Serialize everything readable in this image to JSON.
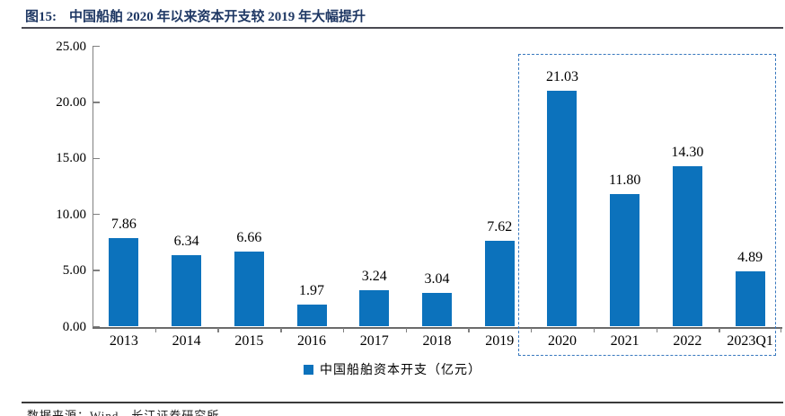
{
  "figure": {
    "number_label": "图15:",
    "title": "中国船舶 2020 年以来资本开支较 2019 年大幅提升"
  },
  "chart_data": {
    "type": "bar",
    "title": "中国船舶2020年以来资本开支较2019年大幅提升",
    "categories": [
      "2013",
      "2014",
      "2015",
      "2016",
      "2017",
      "2018",
      "2019",
      "2020",
      "2021",
      "2022",
      "2023Q1"
    ],
    "values": [
      7.86,
      6.34,
      6.66,
      1.97,
      3.24,
      3.04,
      7.62,
      21.03,
      11.8,
      14.3,
      4.89
    ],
    "value_labels": [
      "7.86",
      "6.34",
      "6.66",
      "1.97",
      "3.24",
      "3.04",
      "7.62",
      "21.03",
      "11.80",
      "14.30",
      "4.89"
    ],
    "xlabel": "",
    "ylabel": "",
    "ylim": [
      0,
      25
    ],
    "yticks": [
      0,
      5,
      10,
      15,
      20,
      25
    ],
    "ytick_labels": [
      "0.00",
      "5.00",
      "10.00",
      "15.00",
      "20.00",
      "25.00"
    ],
    "grid": false,
    "legend": [
      "中国船舶资本开支（亿元）"
    ],
    "legend_position": "bottom",
    "bar_color": "#0C72BC",
    "highlight": {
      "from": "2020",
      "to": "2023Q1",
      "style": "dashed",
      "border_color": "#3878BE"
    }
  },
  "footer": {
    "source": "数据来源：Wind，长江证券研究所"
  },
  "colors": {
    "title_text": "#1F3864",
    "bar": "#0C72BC",
    "axis": "#808080",
    "highlight_border": "#3878BE"
  }
}
